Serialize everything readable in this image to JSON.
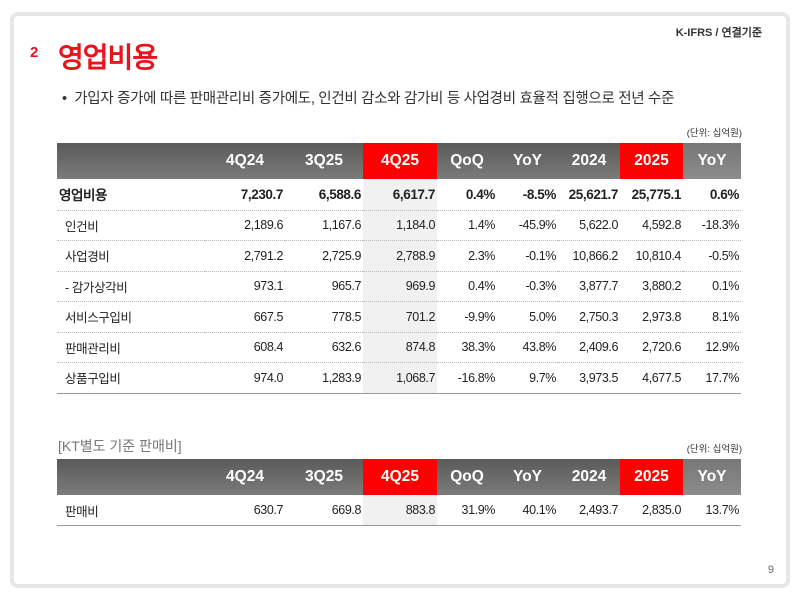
{
  "header": {
    "standard": "K-IFRS / 연결기준",
    "section_number": "2",
    "title": "영업비용",
    "bullet": "가입자 증가에 따른 판매관리비 증가에도, 인건비 감소와 감가비 등 사업경비 효율적 집행으로 전년 수준"
  },
  "unit": "(단위: 십억원)",
  "columns": [
    "4Q24",
    "3Q25",
    "4Q25",
    "QoQ",
    "YoY",
    "2024",
    "2025",
    "YoY"
  ],
  "table1": {
    "rows": [
      {
        "label": "영업비용",
        "values": [
          "7,230.7",
          "6,588.6",
          "6,617.7",
          "0.4%",
          "-8.5%",
          "25,621.7",
          "25,775.1",
          "0.6%"
        ]
      },
      {
        "label": "인건비",
        "values": [
          "2,189.6",
          "1,167.6",
          "1,184.0",
          "1.4%",
          "-45.9%",
          "5,622.0",
          "4,592.8",
          "-18.3%"
        ]
      },
      {
        "label": "사업경비",
        "values": [
          "2,791.2",
          "2,725.9",
          "2,788.9",
          "2.3%",
          "-0.1%",
          "10,866.2",
          "10,810.4",
          "-0.5%"
        ]
      },
      {
        "label": "- 감가상각비",
        "values": [
          "973.1",
          "965.7",
          "969.9",
          "0.4%",
          "-0.3%",
          "3,877.7",
          "3,880.2",
          "0.1%"
        ]
      },
      {
        "label": "서비스구입비",
        "values": [
          "667.5",
          "778.5",
          "701.2",
          "-9.9%",
          "5.0%",
          "2,750.3",
          "2,973.8",
          "8.1%"
        ]
      },
      {
        "label": "판매관리비",
        "values": [
          "608.4",
          "632.6",
          "874.8",
          "38.3%",
          "43.8%",
          "2,409.6",
          "2,720.6",
          "12.9%"
        ]
      },
      {
        "label": "상품구입비",
        "values": [
          "974.0",
          "1,283.9",
          "1,068.7",
          "-16.8%",
          "9.7%",
          "3,973.5",
          "4,677.5",
          "17.7%"
        ]
      }
    ]
  },
  "table2": {
    "title": "[KT별도 기준 판매비]",
    "rows": [
      {
        "label": "판매비",
        "values": [
          "630.7",
          "669.8",
          "883.8",
          "31.9%",
          "40.1%",
          "2,493.7",
          "2,835.0",
          "13.7%"
        ]
      }
    ]
  },
  "page_number": "9",
  "colors": {
    "accent": "#ff0000",
    "header_gray": "#6a6a6a"
  }
}
